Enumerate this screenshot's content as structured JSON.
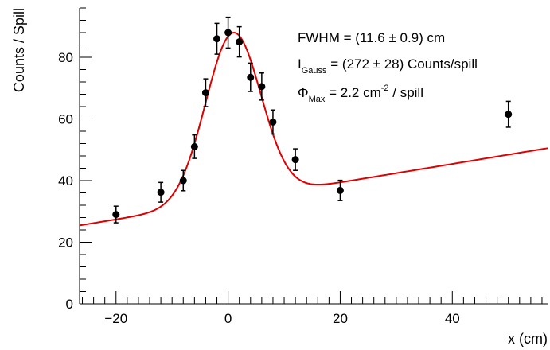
{
  "chart_data": {
    "type": "scatter",
    "title": "",
    "xlabel": "x (cm)",
    "ylabel": "Counts / Spill",
    "xlim": [
      -26.5,
      57
    ],
    "ylim": [
      0,
      96
    ],
    "x_ticks": [
      -20,
      0,
      20,
      40
    ],
    "x_tick_labels": [
      "−20",
      "0",
      "20",
      "40"
    ],
    "y_ticks": [
      0,
      20,
      40,
      60,
      80
    ],
    "y_tick_labels": [
      "0",
      "20",
      "40",
      "60",
      "80"
    ],
    "grid": false,
    "legend": "none",
    "colors": {
      "points": "#000000",
      "fit": "#e00000",
      "axes": "#000000"
    },
    "series": [
      {
        "kind": "points_with_errors",
        "x": [
          -20,
          -12,
          -8,
          -6,
          -4,
          -2,
          0,
          2,
          4,
          6,
          8,
          12,
          20,
          50
        ],
        "y": [
          29,
          36.2,
          40,
          51,
          68.5,
          86,
          88,
          85,
          73.5,
          70.5,
          59,
          46.8,
          36.8,
          61.5
        ],
        "err": [
          2.7,
          3.2,
          3.3,
          3.8,
          4.5,
          5.0,
          5.0,
          4.9,
          4.6,
          4.4,
          3.9,
          3.5,
          3.3,
          4.2
        ]
      },
      {
        "kind": "fit_curve",
        "model": "gaussian_plus_linear",
        "gauss_mean": 0.9,
        "gauss_sigma": 4.93,
        "gauss_amplitude": 54.3,
        "background_slope": 0.3,
        "background_intercept": 33.4
      }
    ],
    "annotations": {
      "fwhm": "FWHM = (11.6 ± 0.9) cm",
      "igauss_symbol": "I",
      "igauss_sub": "Gauss",
      "igauss_value": " = (272 ± 28) Counts/spill",
      "phi_symbol": "Φ",
      "phi_sub": "Max",
      "phi_value": " = 2.2 cm",
      "phi_sup": "-2",
      "phi_tail": " / spill"
    }
  }
}
